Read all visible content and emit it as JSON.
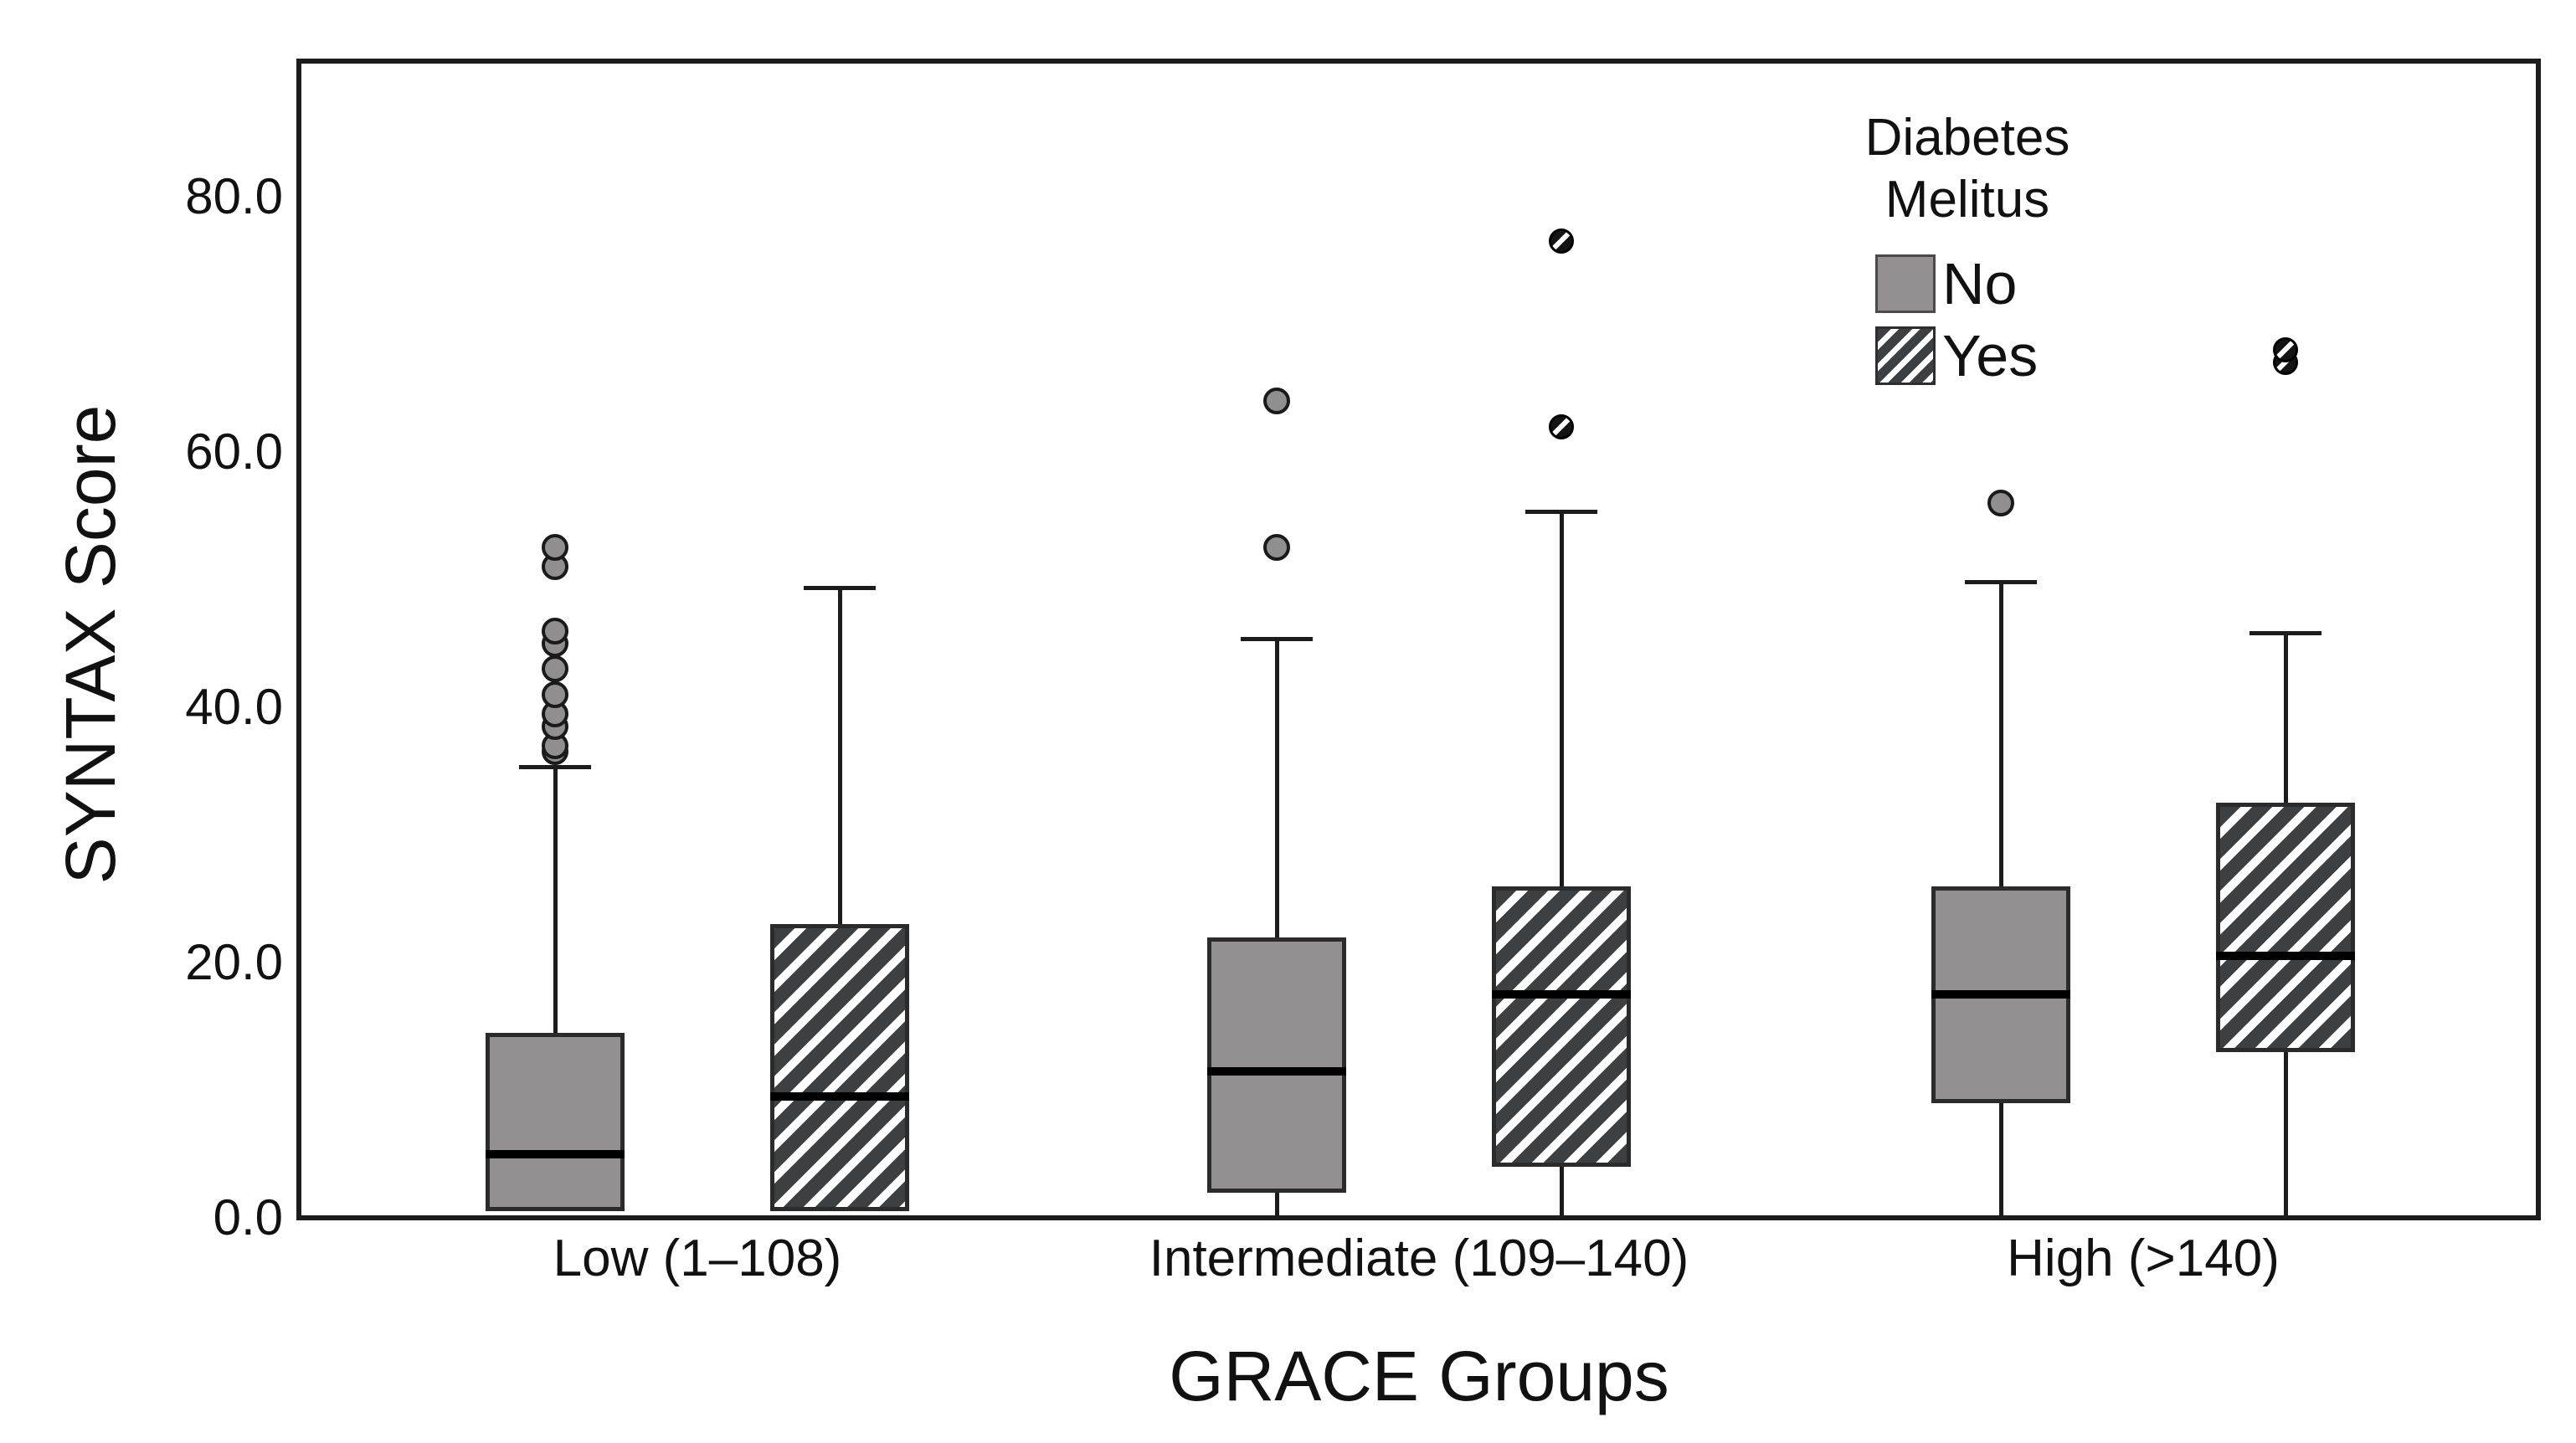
{
  "chart_data": {
    "type": "box",
    "title": "",
    "xlabel": "GRACE Groups",
    "ylabel": "SYNTAX Score",
    "ylim": [
      0,
      90.6
    ],
    "grid": false,
    "yticks": [
      {
        "value": 0,
        "label": "0.0"
      },
      {
        "value": 20,
        "label": "20.0"
      },
      {
        "value": 40,
        "label": "40.0"
      },
      {
        "value": 60,
        "label": "60.0"
      },
      {
        "value": 80,
        "label": "80.0"
      }
    ],
    "categories": [
      "Low (1–108)",
      "Intermediate (109–140)",
      "High (>140)"
    ],
    "legend": {
      "title_lines": [
        "Diabetes",
        "Melitus"
      ],
      "position": "top-right-inside",
      "items": [
        {
          "label": "No",
          "style": "solid-gray",
          "color": "#949091"
        },
        {
          "label": "Yes",
          "style": "hatched",
          "color": "#3d4043"
        }
      ]
    },
    "series": [
      {
        "name": "No",
        "style": "solid-gray",
        "boxes": [
          {
            "category": "Low (1–108)",
            "whisker_low": 0.5,
            "q1": 0.5,
            "median": 5,
            "q3": 14.5,
            "whisker_high": 35.5,
            "outliers": [
              36.5,
              37,
              38.5,
              39.5,
              41,
              43,
              45,
              46,
              51,
              52.5
            ]
          },
          {
            "category": "Intermediate (109–140)",
            "whisker_low": 0,
            "q1": 2,
            "median": 11.5,
            "q3": 22,
            "whisker_high": 45.5,
            "outliers": [
              52.5,
              64
            ]
          },
          {
            "category": "High (>140)",
            "whisker_low": 0,
            "q1": 9,
            "median": 17.5,
            "q3": 26,
            "whisker_high": 50,
            "outliers": [
              56
            ]
          }
        ]
      },
      {
        "name": "Yes",
        "style": "hatched",
        "boxes": [
          {
            "category": "Low (1–108)",
            "whisker_low": 0.5,
            "q1": 0.5,
            "median": 9.5,
            "q3": 23,
            "whisker_high": 49.5,
            "outliers": []
          },
          {
            "category": "Intermediate (109–140)",
            "whisker_low": 0,
            "q1": 4,
            "median": 17.5,
            "q3": 26,
            "whisker_high": 55.5,
            "outliers": [
              62,
              76.5
            ]
          },
          {
            "category": "High (>140)",
            "whisker_low": 0,
            "q1": 13,
            "median": 20.5,
            "q3": 32.5,
            "whisker_high": 46,
            "outliers": [
              67,
              68
            ]
          }
        ]
      }
    ]
  },
  "colors": {
    "background": "#ffffff",
    "frame": "#1c1c1c",
    "gray_fill": "#949091",
    "hatch_dark": "#3d4043",
    "text": "#111111"
  }
}
